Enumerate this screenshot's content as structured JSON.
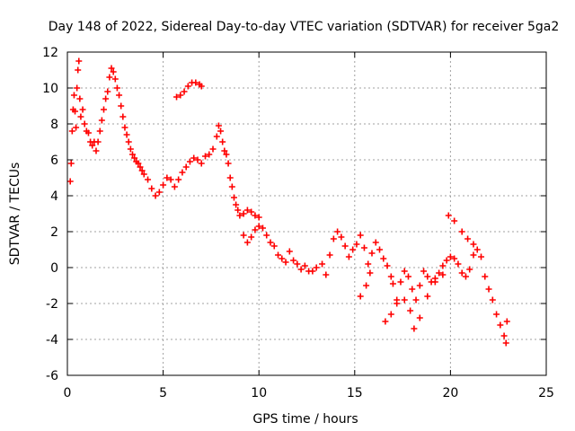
{
  "chart_data": {
    "type": "scatter",
    "title": "Day 148 of 2022, Sidereal Day-to-day VTEC variation (SDTVAR) for receiver 5ga2",
    "xlabel": "GPS time / hours",
    "ylabel": "SDTVAR / TECUs",
    "xlim": [
      0,
      25
    ],
    "ylim": [
      -6,
      12
    ],
    "xticks": [
      "0",
      "5",
      "10",
      "15",
      "20",
      "25"
    ],
    "yticks": [
      "-6",
      "-4",
      "-2",
      "0",
      "2",
      "4",
      "6",
      "8",
      "10",
      "12"
    ],
    "grid": true,
    "marker": "+",
    "color": "#ff0000",
    "series": [
      {
        "name": "SDTVAR",
        "points": [
          [
            0.15,
            4.8
          ],
          [
            0.2,
            5.8
          ],
          [
            0.25,
            7.6
          ],
          [
            0.3,
            8.8
          ],
          [
            0.35,
            9.6
          ],
          [
            0.4,
            8.7
          ],
          [
            0.45,
            7.8
          ],
          [
            0.5,
            10.0
          ],
          [
            0.55,
            11.0
          ],
          [
            0.6,
            11.5
          ],
          [
            0.65,
            9.4
          ],
          [
            0.7,
            8.4
          ],
          [
            0.8,
            8.8
          ],
          [
            0.9,
            8.0
          ],
          [
            1.0,
            7.6
          ],
          [
            1.1,
            7.5
          ],
          [
            1.2,
            7.0
          ],
          [
            1.3,
            6.8
          ],
          [
            1.4,
            7.0
          ],
          [
            1.5,
            6.5
          ],
          [
            1.6,
            7.0
          ],
          [
            1.7,
            7.6
          ],
          [
            1.8,
            8.2
          ],
          [
            1.9,
            8.8
          ],
          [
            2.0,
            9.4
          ],
          [
            2.1,
            9.8
          ],
          [
            2.2,
            10.6
          ],
          [
            2.3,
            11.1
          ],
          [
            2.4,
            10.9
          ],
          [
            2.5,
            10.5
          ],
          [
            2.6,
            10.0
          ],
          [
            2.7,
            9.6
          ],
          [
            2.8,
            9.0
          ],
          [
            2.9,
            8.4
          ],
          [
            3.0,
            7.8
          ],
          [
            3.1,
            7.4
          ],
          [
            3.2,
            7.0
          ],
          [
            3.3,
            6.6
          ],
          [
            3.4,
            6.3
          ],
          [
            3.5,
            6.1
          ],
          [
            3.6,
            5.9
          ],
          [
            3.7,
            5.8
          ],
          [
            3.8,
            5.6
          ],
          [
            3.9,
            5.4
          ],
          [
            4.0,
            5.2
          ],
          [
            4.2,
            4.9
          ],
          [
            4.4,
            4.4
          ],
          [
            4.6,
            4.0
          ],
          [
            4.8,
            4.2
          ],
          [
            5.0,
            4.6
          ],
          [
            5.2,
            5.0
          ],
          [
            5.4,
            4.9
          ],
          [
            5.6,
            4.5
          ],
          [
            5.8,
            4.9
          ],
          [
            6.0,
            5.3
          ],
          [
            6.2,
            5.6
          ],
          [
            6.4,
            5.9
          ],
          [
            6.6,
            6.1
          ],
          [
            6.8,
            6.0
          ],
          [
            7.0,
            5.8
          ],
          [
            7.2,
            6.2
          ],
          [
            7.4,
            6.3
          ],
          [
            7.6,
            6.6
          ],
          [
            7.8,
            7.3
          ],
          [
            7.9,
            7.9
          ],
          [
            8.0,
            7.6
          ],
          [
            8.1,
            7.0
          ],
          [
            8.2,
            6.5
          ],
          [
            8.3,
            6.3
          ],
          [
            8.4,
            5.8
          ],
          [
            8.5,
            5.0
          ],
          [
            8.6,
            4.5
          ],
          [
            8.7,
            3.9
          ],
          [
            8.8,
            3.5
          ],
          [
            8.9,
            3.2
          ],
          [
            9.0,
            2.9
          ],
          [
            9.2,
            3.0
          ],
          [
            9.4,
            3.2
          ],
          [
            9.6,
            3.1
          ],
          [
            9.8,
            2.9
          ],
          [
            10.0,
            2.8
          ],
          [
            9.2,
            1.8
          ],
          [
            9.4,
            1.4
          ],
          [
            9.6,
            1.7
          ],
          [
            9.8,
            2.1
          ],
          [
            10.0,
            2.3
          ],
          [
            10.2,
            2.2
          ],
          [
            10.4,
            1.8
          ],
          [
            10.6,
            1.4
          ],
          [
            10.8,
            1.2
          ],
          [
            11.0,
            0.7
          ],
          [
            11.2,
            0.5
          ],
          [
            11.4,
            0.3
          ],
          [
            11.6,
            0.9
          ],
          [
            11.8,
            0.4
          ],
          [
            12.0,
            0.2
          ],
          [
            12.2,
            -0.1
          ],
          [
            12.4,
            0.1
          ],
          [
            12.6,
            -0.2
          ],
          [
            12.8,
            -0.2
          ],
          [
            13.0,
            0.0
          ],
          [
            13.3,
            0.2
          ],
          [
            13.5,
            -0.4
          ],
          [
            13.7,
            0.7
          ],
          [
            13.9,
            1.6
          ],
          [
            14.1,
            2.0
          ],
          [
            14.3,
            1.7
          ],
          [
            14.5,
            1.2
          ],
          [
            14.7,
            0.6
          ],
          [
            14.9,
            1.0
          ],
          [
            15.1,
            1.3
          ],
          [
            15.3,
            1.8
          ],
          [
            15.5,
            1.1
          ],
          [
            15.7,
            0.2
          ],
          [
            15.9,
            0.8
          ],
          [
            16.1,
            1.4
          ],
          [
            16.3,
            1.0
          ],
          [
            16.5,
            0.5
          ],
          [
            16.7,
            0.1
          ],
          [
            16.9,
            -0.5
          ],
          [
            17.0,
            -0.9
          ],
          [
            17.2,
            -1.8
          ],
          [
            17.4,
            -0.8
          ],
          [
            17.6,
            -0.2
          ],
          [
            17.8,
            -0.5
          ],
          [
            18.0,
            -1.2
          ],
          [
            18.2,
            -1.8
          ],
          [
            18.4,
            -1.0
          ],
          [
            18.6,
            -0.2
          ],
          [
            18.8,
            -0.5
          ],
          [
            19.0,
            -0.8
          ],
          [
            19.2,
            -0.6
          ],
          [
            19.4,
            -0.3
          ],
          [
            19.6,
            0.1
          ],
          [
            19.8,
            0.4
          ],
          [
            20.0,
            0.6
          ],
          [
            20.2,
            0.5
          ],
          [
            20.4,
            0.2
          ],
          [
            20.6,
            -0.3
          ],
          [
            20.8,
            -0.5
          ],
          [
            21.0,
            -0.1
          ],
          [
            21.2,
            0.7
          ],
          [
            21.4,
            1.0
          ],
          [
            21.6,
            0.6
          ],
          [
            21.8,
            -0.5
          ],
          [
            22.0,
            -1.2
          ],
          [
            22.2,
            -1.8
          ],
          [
            22.4,
            -2.6
          ],
          [
            22.6,
            -3.2
          ],
          [
            22.8,
            -3.8
          ],
          [
            22.9,
            -4.2
          ],
          [
            22.95,
            -3.0
          ],
          [
            15.3,
            -1.6
          ],
          [
            15.6,
            -1.0
          ],
          [
            15.8,
            -0.3
          ],
          [
            16.6,
            -3.0
          ],
          [
            16.9,
            -2.6
          ],
          [
            17.2,
            -2.0
          ],
          [
            17.6,
            -1.8
          ],
          [
            17.9,
            -2.4
          ],
          [
            18.1,
            -3.4
          ],
          [
            18.4,
            -2.8
          ],
          [
            18.8,
            -1.6
          ],
          [
            19.2,
            -0.8
          ],
          [
            19.6,
            -0.4
          ],
          [
            19.9,
            2.9
          ],
          [
            20.2,
            2.6
          ],
          [
            20.6,
            2.0
          ],
          [
            20.9,
            1.6
          ],
          [
            21.2,
            1.3
          ],
          [
            5.7,
            9.5
          ],
          [
            5.9,
            9.6
          ],
          [
            6.1,
            9.8
          ],
          [
            6.3,
            10.1
          ],
          [
            6.5,
            10.3
          ],
          [
            6.7,
            10.3
          ],
          [
            6.9,
            10.2
          ],
          [
            7.0,
            10.1
          ]
        ]
      }
    ]
  }
}
